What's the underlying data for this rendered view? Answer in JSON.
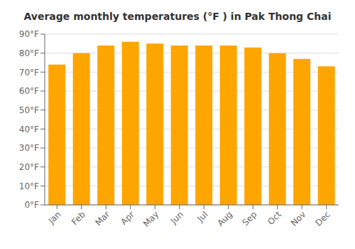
{
  "chart_data": {
    "type": "bar",
    "title": "Average monthly temperatures (°F ) in Pak Thong Chai",
    "categories": [
      "Jan",
      "Feb",
      "Mar",
      "Apr",
      "May",
      "Jun",
      "Jul",
      "Aug",
      "Sep",
      "Oct",
      "Nov",
      "Dec"
    ],
    "values": [
      74,
      80,
      84,
      86,
      85,
      84,
      84,
      84,
      83,
      80,
      77,
      73
    ],
    "color": "#FFA500",
    "ylim": [
      0,
      90
    ],
    "yticks": [
      {
        "value": 0,
        "label": "0°F"
      },
      {
        "value": 10,
        "label": "10°F"
      },
      {
        "value": 20,
        "label": "20°F"
      },
      {
        "value": 30,
        "label": "30°F"
      },
      {
        "value": 40,
        "label": "40°F"
      },
      {
        "value": 50,
        "label": "50°F"
      },
      {
        "value": 60,
        "label": "60°F"
      },
      {
        "value": 70,
        "label": "70°F"
      },
      {
        "value": 80,
        "label": "80°F"
      },
      {
        "value": 90,
        "label": "90°F"
      }
    ],
    "grid": true
  }
}
